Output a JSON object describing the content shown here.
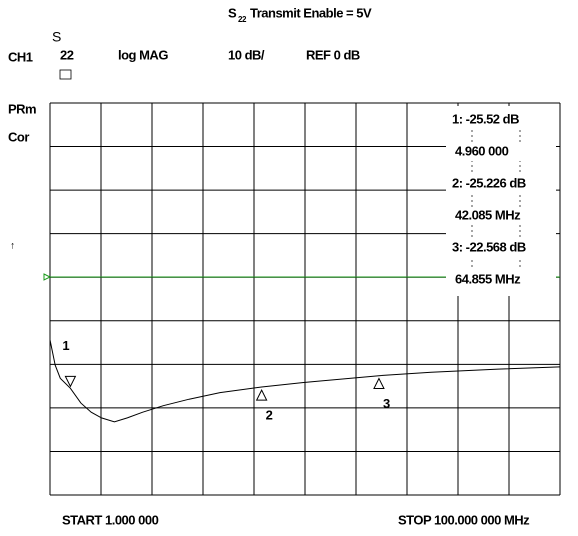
{
  "title": {
    "s": "S",
    "sub": "22",
    "rest": " Transmit Enable = 5V"
  },
  "header": {
    "channel": "CH1",
    "param_s": "S",
    "param_sub": "22",
    "format": "log MAG",
    "scale": "10 dB/",
    "ref": "REF 0 dB"
  },
  "side": {
    "prm": "PRm",
    "cor": "Cor",
    "arrow": "↑"
  },
  "footer": {
    "start": "START   1.000 000",
    "stop": "STOP 100.000 000 MHz"
  },
  "markers": [
    {
      "id": "1",
      "readout": "1: -25.52  dB",
      "stimulus": "4.960 000",
      "x": 4.96,
      "value": -25.52
    },
    {
      "id": "2",
      "readout": "2: -25.226 dB",
      "stimulus": "42.085 MHz",
      "x": 42.085,
      "value": -25.226
    },
    {
      "id": "3",
      "readout": "3: -22.568 dB",
      "stimulus": "64.855 MHz",
      "x": 64.855,
      "value": -22.568
    }
  ],
  "trace": {
    "color": "#000000",
    "xlim": [
      1,
      100
    ],
    "ylim": [
      -50,
      40
    ],
    "x": [
      1,
      2,
      3,
      4.96,
      7,
      9,
      11,
      13.5,
      16,
      19,
      23,
      28,
      34,
      42.085,
      50,
      64.855,
      75,
      88,
      100
    ],
    "values": [
      -14.4,
      -20.2,
      -23.2,
      -25.5,
      -28.9,
      -31,
      -32.3,
      -33.2,
      -32.3,
      -31,
      -29.5,
      -28,
      -26.5,
      -25.2,
      -24.2,
      -22.6,
      -21.8,
      -21.1,
      -20.6
    ]
  }
}
